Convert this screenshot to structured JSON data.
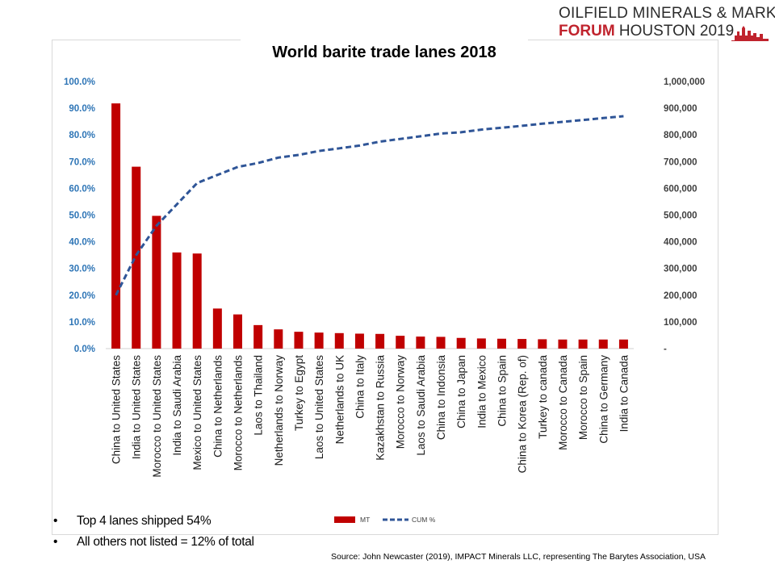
{
  "brand": {
    "line1": "OILFIELD MINERALS & MARKETS",
    "line2_accent": "FORUM",
    "line2_rest": " HOUSTON 2019"
  },
  "chart_data": {
    "type": "bar",
    "title": "World barite trade lanes 2018",
    "categories": [
      "China to United States",
      "India to United States",
      "Morocco to United States",
      "India to Saudi Arabia",
      "Mexico to United States",
      "China to Netherlands",
      "Morocco to Netherlands",
      "Laos to Thailand",
      "Netherlands to Norway",
      "Turkey to Egypt",
      "Laos to United States",
      "Netherlands to UK",
      "China to Italy",
      "Kazakhstan to Russia",
      "Morocco to Norway",
      "Laos to Saudi Arabia",
      "China to Indonsia",
      "China to Japan",
      "India to Mexico",
      "China to Spain",
      "China to Korea (Rep. of)",
      "Turkey to canada",
      "Morocco to Canada",
      "Morocco to Spain",
      "China to Germany",
      "India to Canada"
    ],
    "series": [
      {
        "name": "MT",
        "axis": "right",
        "color": "#c00000",
        "values": [
          918000,
          681000,
          497000,
          360000,
          356000,
          150000,
          128000,
          88000,
          72000,
          63000,
          60000,
          58000,
          56000,
          55000,
          48000,
          45000,
          44000,
          40000,
          38000,
          37000,
          36000,
          35000,
          34000,
          34000,
          34000,
          34000
        ]
      },
      {
        "name": "CUM %",
        "axis": "left",
        "style": "dashed-line",
        "color": "#2f5597",
        "values": [
          0.2,
          0.35,
          0.46,
          0.54,
          0.62,
          0.65,
          0.68,
          0.695,
          0.715,
          0.725,
          0.74,
          0.75,
          0.76,
          0.775,
          0.785,
          0.795,
          0.805,
          0.81,
          0.82,
          0.827,
          0.834,
          0.842,
          0.849,
          0.856,
          0.863,
          0.87
        ]
      }
    ],
    "y_left": {
      "range": [
        0,
        1
      ],
      "ticks": [
        "0.0%",
        "10.0%",
        "20.0%",
        "30.0%",
        "40.0%",
        "50.0%",
        "60.0%",
        "70.0%",
        "80.0%",
        "90.0%",
        "100.0%"
      ],
      "tick_color": "#2e75b6"
    },
    "y_right": {
      "range": [
        0,
        1000000
      ],
      "ticks": [
        "-",
        "100,000",
        "200,000",
        "300,000",
        "400,000",
        "500,000",
        "600,000",
        "700,000",
        "800,000",
        "900,000",
        "1,000,000"
      ],
      "tick_color": "#404040"
    },
    "legend": {
      "position": "bottom",
      "items": [
        "MT",
        "CUM %"
      ]
    },
    "grid": false
  },
  "notes": [
    {
      "bullet": "•",
      "text": "Top 4 lanes shipped 54%"
    },
    {
      "bullet": "•",
      "text": "All others not listed = 12% of total"
    }
  ],
  "source": "Source: John Newcaster (2019), IMPACT Minerals LLC, representing The Barytes Association, USA"
}
